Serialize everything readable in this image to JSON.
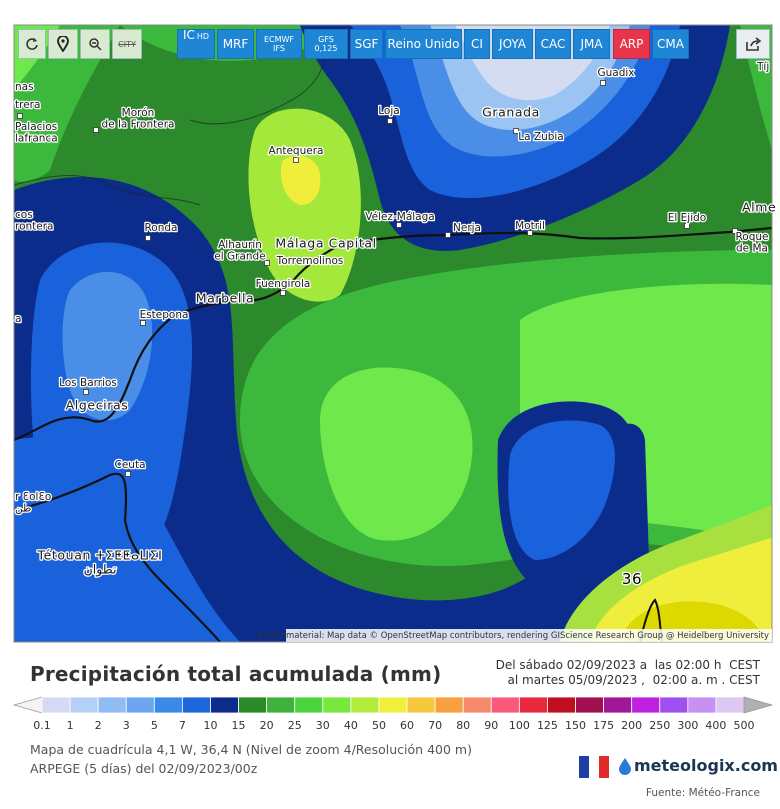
{
  "toolbar": {
    "city": "CITY",
    "models": [
      {
        "text": "IC",
        "sub": "HD"
      },
      {
        "text": "MRF"
      },
      {
        "text": "ECMWF",
        "sub": "IFS"
      },
      {
        "text": "GFS",
        "sub": "0,125"
      },
      {
        "text": "SGF"
      },
      {
        "text": "Reino Unido"
      },
      {
        "text": "CI"
      },
      {
        "text": "JOYA"
      },
      {
        "text": "CAC"
      },
      {
        "text": "JMA"
      },
      {
        "text": "ARP"
      },
      {
        "text": "CMA"
      }
    ]
  },
  "map": {
    "places": [
      {
        "lines": [
          "nas"
        ]
      },
      {
        "lines": [
          "trera"
        ]
      },
      {
        "lines": [
          "Morón",
          "de la Frontera"
        ]
      },
      {
        "lines": [
          "Palacios",
          "lafranca"
        ]
      },
      {
        "lines": [
          "Loja"
        ]
      },
      {
        "lines": [
          "Granada"
        ]
      },
      {
        "lines": [
          "La Zubia"
        ]
      },
      {
        "lines": [
          "Guadix"
        ]
      },
      {
        "lines": [
          "Tíj"
        ]
      },
      {
        "lines": [
          "Antequera"
        ]
      },
      {
        "lines": [
          "cos",
          "rontera"
        ]
      },
      {
        "lines": [
          "Ronda"
        ]
      },
      {
        "lines": [
          "Vélez-Málaga"
        ]
      },
      {
        "lines": [
          "Nerja"
        ]
      },
      {
        "lines": [
          "Motril"
        ]
      },
      {
        "lines": [
          "El Ejido"
        ]
      },
      {
        "lines": [
          "Alme"
        ]
      },
      {
        "lines": [
          "Roque",
          "de Ma"
        ]
      },
      {
        "lines": [
          "Alhaurín",
          "el Grande"
        ]
      },
      {
        "lines": [
          "Málaga Capital"
        ]
      },
      {
        "lines": [
          "Torremolinos"
        ]
      },
      {
        "lines": [
          "Fuengirola"
        ]
      },
      {
        "lines": [
          "Marbella"
        ]
      },
      {
        "lines": [
          "Estepona"
        ]
      },
      {
        "lines": [
          "a"
        ]
      },
      {
        "lines": [
          "Los Barrios"
        ]
      },
      {
        "lines": [
          "Algeciras"
        ]
      },
      {
        "lines": [
          "Ceuta"
        ]
      },
      {
        "lines": [
          "r ƐolƐo",
          "طن"
        ]
      },
      {
        "lines": [
          "Tétouan ⵜⵉⵟⵟⴰⵡⵉⵏ",
          "تطوان"
        ]
      }
    ],
    "contour_label": 36,
    "attribution": "Kartenmaterial: Map data © OpenStreetMap contributors, rendering GIScience Research Group @ Heidelberg University"
  },
  "panel": {
    "title": "Precipitación total acumulada (mm)",
    "period": [
      "Del sábado 02/09/2023 a  las 02:00 h  CEST",
      "al martes 05/09/2023 ,  02:00 a. m . CEST"
    ],
    "legend": {
      "labels": [
        0.1,
        1,
        2,
        3,
        5,
        7,
        10,
        15,
        20,
        25,
        30,
        40,
        50,
        60,
        70,
        80,
        90,
        100,
        125,
        150,
        175,
        200,
        250,
        300,
        400,
        500
      ],
      "colors": [
        "#f4f4f8",
        "#d4daf2",
        "#b4d0f6",
        "#90bcf4",
        "#6ca6f0",
        "#3c8ae8",
        "#1c68dc",
        "#0c2c8c",
        "#2a8a2a",
        "#3cb43c",
        "#4cd43c",
        "#78e83c",
        "#b4ec3c",
        "#f0f03c",
        "#f8c83c",
        "#f8a040",
        "#f88a6c",
        "#f85a78",
        "#e8283c",
        "#c01020",
        "#a01050",
        "#a01898",
        "#c020e0",
        "#a050f0",
        "#c890f0",
        "#dcc8f0",
        "#b0b0b0"
      ]
    },
    "grid_info": "Mapa de cuadrícula 4,1 W, 36,4 N (Nivel de zoom 4/Resolución 400 m)",
    "model_info": "ARPEGE (5 días) del 02/09/2023/00z",
    "brand": "meteologix.com",
    "source": "Fuente: Météo-France"
  }
}
